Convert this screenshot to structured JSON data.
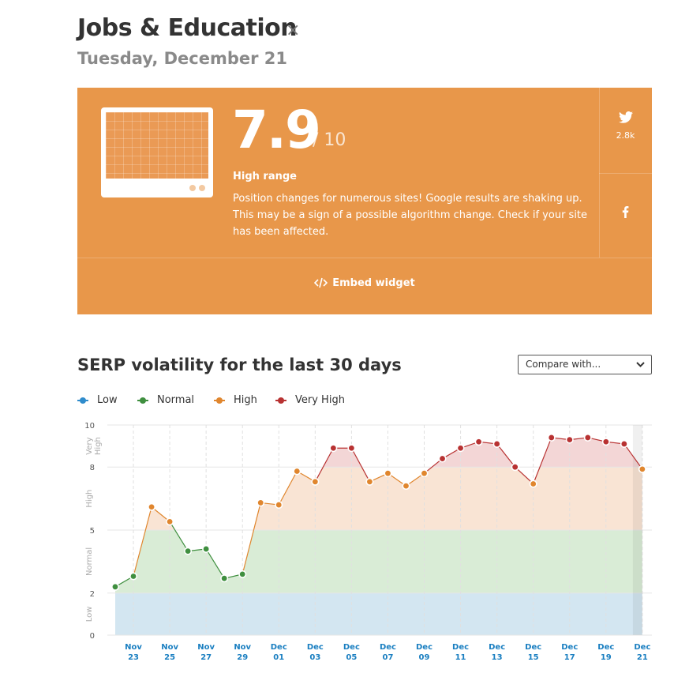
{
  "header": {
    "title": "Jobs & Education",
    "close_label": "×",
    "date": "Tuesday, December 21"
  },
  "card": {
    "score": "7.9",
    "score_of": "/ 10",
    "range_label": "High range",
    "description": "Position changes for numerous sites! Google results are shaking up. This may be a sign of a possible algorithm change. Check if your site has been affected.",
    "twitter_count": "2.8k",
    "embed_label": "Embed widget",
    "bg_color": "#e8974a"
  },
  "section": {
    "title": "SERP volatility for the last 30 days",
    "compare_placeholder": "Compare with..."
  },
  "legend": [
    {
      "label": "Low",
      "color": "#2f8ccc"
    },
    {
      "label": "Normal",
      "color": "#3f8f3f"
    },
    {
      "label": "High",
      "color": "#e0862e"
    },
    {
      "label": "Very High",
      "color": "#b83232"
    }
  ],
  "chart_data": {
    "type": "line",
    "ylim": [
      0,
      10
    ],
    "y_ticks": [
      0,
      2,
      5,
      8,
      10
    ],
    "band_labels": [
      "Low",
      "Normal",
      "High",
      "Very High"
    ],
    "bands": [
      {
        "name": "Low",
        "from": 0,
        "to": 2,
        "color": "#d3e6f1"
      },
      {
        "name": "Normal",
        "from": 2,
        "to": 5,
        "color": "#d9ecd6"
      },
      {
        "name": "High",
        "from": 5,
        "to": 8,
        "color": "#f9e4d4"
      },
      {
        "name": "Very High",
        "from": 8,
        "to": 10,
        "color": "#f3d6d6"
      }
    ],
    "x_labels": [
      [
        "Nov",
        "23"
      ],
      [
        "Nov",
        "25"
      ],
      [
        "Nov",
        "27"
      ],
      [
        "Nov",
        "29"
      ],
      [
        "Dec",
        "01"
      ],
      [
        "Dec",
        "03"
      ],
      [
        "Dec",
        "05"
      ],
      [
        "Dec",
        "07"
      ],
      [
        "Dec",
        "09"
      ],
      [
        "Dec",
        "11"
      ],
      [
        "Dec",
        "13"
      ],
      [
        "Dec",
        "15"
      ],
      [
        "Dec",
        "17"
      ],
      [
        "Dec",
        "19"
      ],
      [
        "Dec",
        "21"
      ]
    ],
    "x_dates": [
      "Nov 22",
      "Nov 23",
      "Nov 24",
      "Nov 25",
      "Nov 26",
      "Nov 27",
      "Nov 28",
      "Nov 29",
      "Nov 30",
      "Dec 01",
      "Dec 02",
      "Dec 03",
      "Dec 04",
      "Dec 05",
      "Dec 06",
      "Dec 07",
      "Dec 08",
      "Dec 09",
      "Dec 10",
      "Dec 11",
      "Dec 12",
      "Dec 13",
      "Dec 14",
      "Dec 15",
      "Dec 16",
      "Dec 17",
      "Dec 18",
      "Dec 19",
      "Dec 20",
      "Dec 21"
    ],
    "values": [
      2.3,
      2.8,
      6.1,
      5.4,
      4.0,
      4.1,
      2.7,
      2.9,
      6.3,
      6.2,
      7.8,
      7.3,
      8.9,
      8.9,
      7.3,
      7.7,
      7.1,
      7.7,
      8.4,
      8.9,
      9.2,
      9.1,
      8.0,
      7.2,
      9.4,
      9.3,
      9.4,
      9.2,
      9.1,
      7.9
    ],
    "grid": true
  }
}
